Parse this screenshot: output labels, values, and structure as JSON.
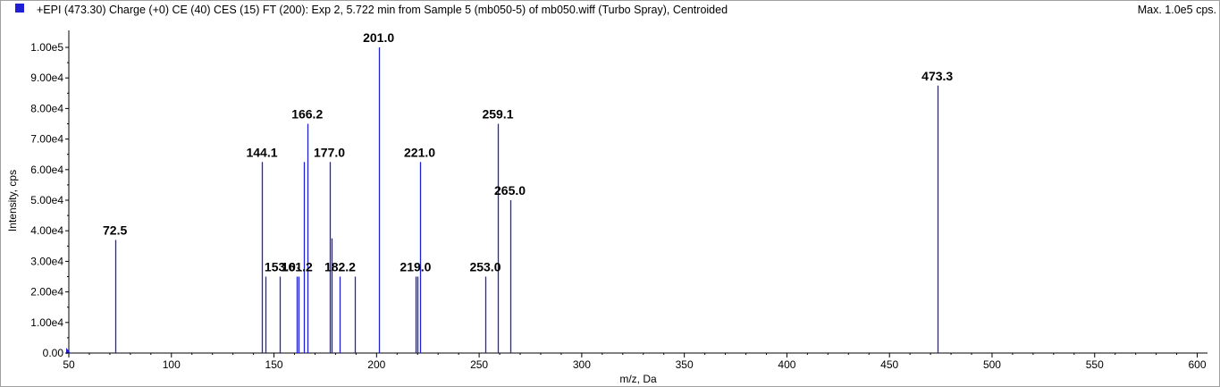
{
  "header": {
    "title": "+EPI (473.30) Charge (+0) CE (40) CES (15) FT (200): Exp 2, 5.722 min from Sample 5 (mb050-5) of mb050.wiff (Turbo Spray), Centroided",
    "max_label": "Max. 1.0e5 cps."
  },
  "colors": {
    "series": "#1f1fd6",
    "axis": "#000000"
  },
  "chart_data": {
    "type": "bar",
    "xlabel": "m/z, Da",
    "ylabel": "Intensity, cps",
    "xlim": [
      50,
      605
    ],
    "ylim": [
      0,
      106000
    ],
    "xticks": [
      50,
      100,
      150,
      200,
      250,
      300,
      350,
      400,
      450,
      500,
      550,
      600
    ],
    "yticks": [
      0,
      10000,
      20000,
      30000,
      40000,
      50000,
      60000,
      70000,
      80000,
      90000,
      100000
    ],
    "ytick_labels": [
      "0.00",
      "1.00e4",
      "2.00e4",
      "3.00e4",
      "4.00e4",
      "5.00e4",
      "6.00e4",
      "7.00e4",
      "8.00e4",
      "9.00e4",
      "1.00e5"
    ],
    "peaks": [
      {
        "mz": 72.5,
        "intensity": 37000
      },
      {
        "mz": 144.1,
        "intensity": 62500
      },
      {
        "mz": 146.0,
        "intensity": 25000
      },
      {
        "mz": 153.0,
        "intensity": 25000
      },
      {
        "mz": 161.2,
        "intensity": 25000
      },
      {
        "mz": 162.0,
        "intensity": 25000
      },
      {
        "mz": 164.5,
        "intensity": 62500
      },
      {
        "mz": 166.2,
        "intensity": 75000
      },
      {
        "mz": 177.0,
        "intensity": 62500
      },
      {
        "mz": 178.0,
        "intensity": 37500
      },
      {
        "mz": 182.2,
        "intensity": 25000
      },
      {
        "mz": 189.5,
        "intensity": 25000
      },
      {
        "mz": 201.0,
        "intensity": 100000
      },
      {
        "mz": 219.0,
        "intensity": 25000
      },
      {
        "mz": 220.0,
        "intensity": 25000
      },
      {
        "mz": 221.0,
        "intensity": 62500
      },
      {
        "mz": 253.0,
        "intensity": 25000
      },
      {
        "mz": 259.1,
        "intensity": 75000
      },
      {
        "mz": 265.0,
        "intensity": 50000
      },
      {
        "mz": 473.3,
        "intensity": 87500
      }
    ],
    "annotations": [
      {
        "text": "72.5",
        "mz": 72.5,
        "intensity": 37000
      },
      {
        "text": "144.1",
        "mz": 144.1,
        "intensity": 62500
      },
      {
        "text": "153.0",
        "mz": 153.0,
        "intensity": 25000
      },
      {
        "text": "161.2",
        "mz": 161.2,
        "intensity": 25000
      },
      {
        "text": "166.2",
        "mz": 166.2,
        "intensity": 75000
      },
      {
        "text": "177.0",
        "mz": 177.0,
        "intensity": 62500
      },
      {
        "text": "182.2",
        "mz": 182.2,
        "intensity": 25000
      },
      {
        "text": "201.0",
        "mz": 201.0,
        "intensity": 100000
      },
      {
        "text": "219.0",
        "mz": 219.0,
        "intensity": 25000
      },
      {
        "text": "221.0",
        "mz": 221.0,
        "intensity": 62500
      },
      {
        "text": "253.0",
        "mz": 253.0,
        "intensity": 25000
      },
      {
        "text": "259.1",
        "mz": 259.1,
        "intensity": 75000
      },
      {
        "text": "265.0",
        "mz": 265.0,
        "intensity": 50000
      },
      {
        "text": "473.3",
        "mz": 473.3,
        "intensity": 87500
      }
    ]
  }
}
